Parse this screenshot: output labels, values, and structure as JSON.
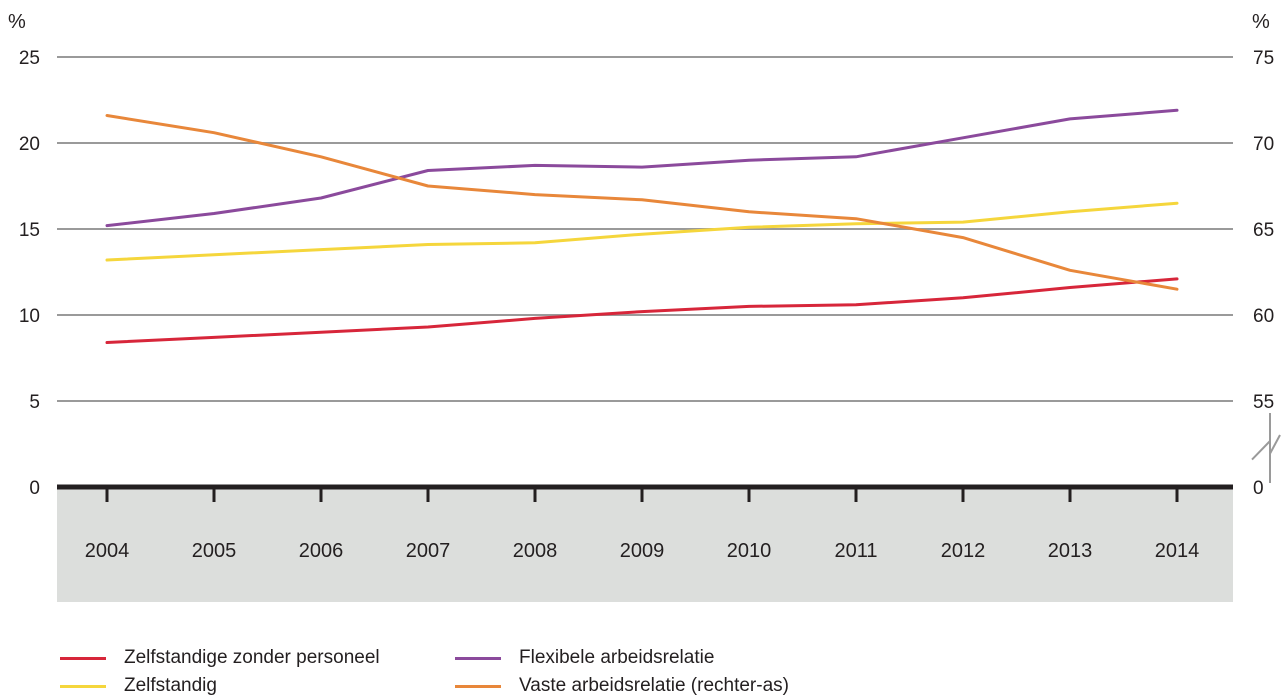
{
  "chart_data": {
    "type": "line",
    "title": "",
    "x": [
      "2004",
      "2005",
      "2006",
      "2007",
      "2008",
      "2009",
      "2010",
      "2011",
      "2012",
      "2013",
      "2014"
    ],
    "left_axis": {
      "unit": "%",
      "ylim": [
        0,
        25
      ],
      "ticks": [
        "0",
        "5",
        "10",
        "15",
        "20",
        "25"
      ]
    },
    "right_axis": {
      "unit": "%",
      "ylim": [
        55,
        75
      ],
      "ticks": [
        "0",
        "55",
        "60",
        "65",
        "70",
        "75"
      ],
      "axis_break": true
    },
    "grid": true,
    "legend_position": "bottom",
    "series": [
      {
        "name": "Zelfstandige zonder personeel",
        "axis": "left",
        "color": "#d7263a",
        "values": [
          8.4,
          8.7,
          9.0,
          9.3,
          9.8,
          10.2,
          10.5,
          10.6,
          11.0,
          11.6,
          12.1
        ]
      },
      {
        "name": "Zelfstandig",
        "axis": "left",
        "color": "#f5d63c",
        "values": [
          13.2,
          13.5,
          13.8,
          14.1,
          14.2,
          14.7,
          15.1,
          15.3,
          15.4,
          16.0,
          16.5
        ]
      },
      {
        "name": "Flexibele arbeidsrelatie",
        "axis": "left",
        "color": "#8b4a9c",
        "values": [
          15.2,
          15.9,
          16.8,
          18.4,
          18.7,
          18.6,
          19.0,
          19.2,
          20.3,
          21.4,
          21.9
        ]
      },
      {
        "name": "Vaste arbeidsrelatie (rechter-as)",
        "axis": "right",
        "color": "#e8873a",
        "values": [
          71.6,
          70.6,
          69.2,
          67.5,
          67.0,
          66.7,
          66.0,
          65.6,
          64.5,
          62.6,
          61.5
        ]
      }
    ]
  },
  "legend": {
    "items": [
      {
        "label": "Zelfstandige zonder personeel",
        "color": "#d7263a"
      },
      {
        "label": "Zelfstandig",
        "color": "#f5d63c"
      },
      {
        "label": "Flexibele arbeidsrelatie",
        "color": "#8b4a9c"
      },
      {
        "label": "Vaste arbeidsrelatie (rechter-as)",
        "color": "#e8873a"
      }
    ]
  },
  "colors": {
    "grid": "#9a9a9a",
    "axis": "#231f20",
    "band": "#dcdedc",
    "break_mark": "#9a9a9a"
  }
}
